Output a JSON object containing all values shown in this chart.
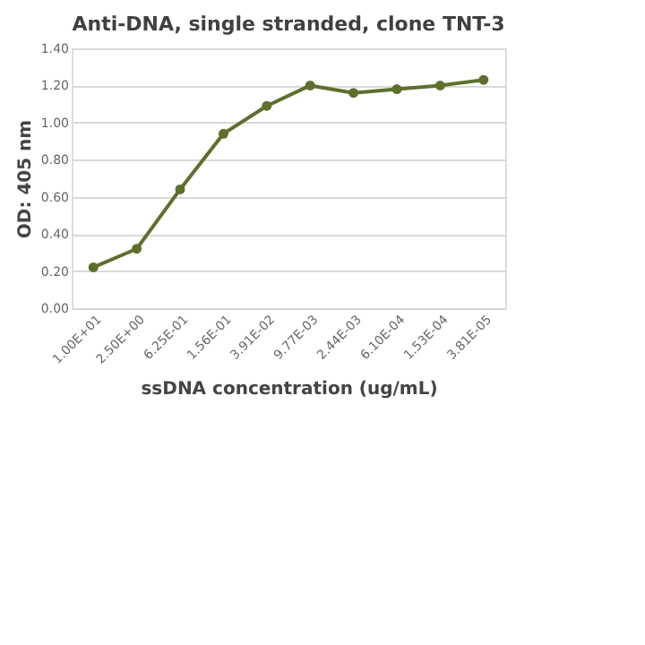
{
  "chart_data": {
    "type": "line",
    "title": "Anti-DNA, single stranded, clone TNT-3",
    "xlabel": "ssDNA concentration (ug/mL)",
    "ylabel": "OD: 405 nm",
    "categories": [
      "1.00E+01",
      "2.50E+00",
      "6.25E-01",
      "1.56E-01",
      "3.91E-02",
      "9.77E-03",
      "2.44E-03",
      "6.10E-04",
      "1.53E-04",
      "3.81E-05"
    ],
    "series": [
      {
        "color": "#5e6f2c",
        "values": [
          0.22,
          0.32,
          0.64,
          0.94,
          1.09,
          1.2,
          1.16,
          1.18,
          1.2,
          1.23
        ]
      }
    ],
    "ylim": [
      0,
      1.4
    ],
    "yticks": [
      {
        "value": 0,
        "label": "0.00"
      },
      {
        "value": 0.2,
        "label": "0.20"
      },
      {
        "value": 0.4,
        "label": "0.40"
      },
      {
        "value": 0.6,
        "label": "0.60"
      },
      {
        "value": 0.8,
        "label": "0.80"
      },
      {
        "value": 1.0,
        "label": "1.00"
      },
      {
        "value": 1.2,
        "label": "1.20"
      },
      {
        "value": 1.4,
        "label": "1.40"
      }
    ],
    "grid": "y",
    "marker": "circle",
    "line_style": "solid"
  }
}
